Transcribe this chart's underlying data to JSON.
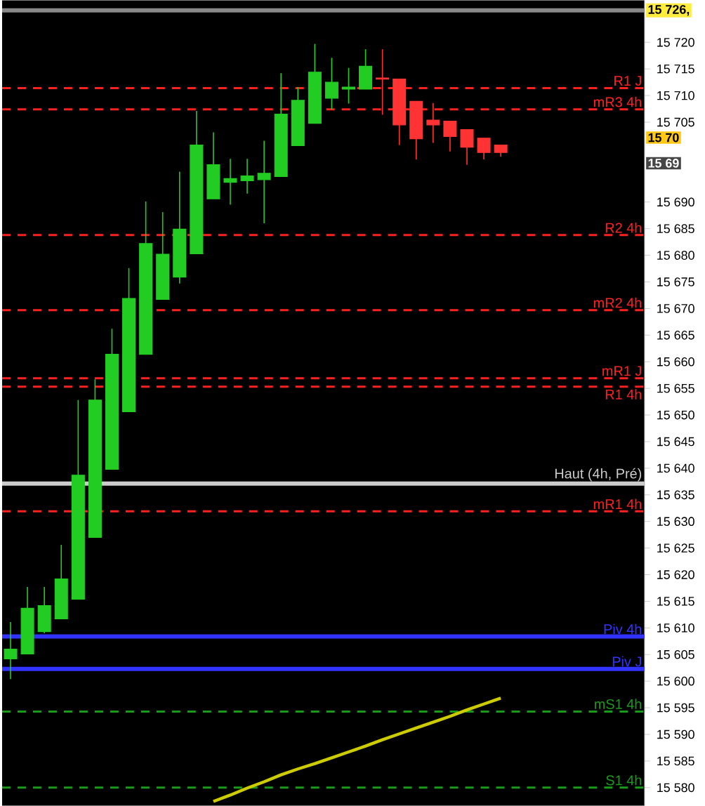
{
  "chart_data": {
    "type": "candlestick",
    "categories": [
      null,
      null,
      null,
      null,
      null,
      null,
      null,
      null,
      null,
      null,
      null,
      null,
      null,
      null,
      null,
      null,
      null,
      null,
      null,
      null,
      null,
      null,
      null,
      null,
      null,
      null,
      null,
      null,
      null,
      null,
      null,
      null,
      null,
      null,
      null,
      null,
      null,
      null
    ],
    "ohlc": [
      [
        15604.2,
        15611.1,
        15600.4,
        15606.0
      ],
      [
        15605.1,
        15617.7,
        15605.1,
        15613.7
      ],
      [
        15609.3,
        15617.7,
        15609.0,
        15614.2
      ],
      [
        15611.7,
        15625.6,
        15611.7,
        15619.2
      ],
      [
        15615.4,
        15652.8,
        15615.4,
        15638.7
      ],
      [
        15627.0,
        15656.7,
        15627.0,
        15652.8
      ],
      [
        15639.8,
        15666.2,
        15639.8,
        15661.4
      ],
      [
        15650.6,
        15677.6,
        15650.6,
        15671.9
      ],
      [
        15661.4,
        15690.1,
        15661.4,
        15682.2
      ],
      [
        15671.7,
        15688.1,
        15671.7,
        15680.2
      ],
      [
        15675.9,
        15695.7,
        15674.7,
        15684.9
      ],
      [
        15680.3,
        15707.1,
        15680.3,
        15700.7
      ],
      [
        15690.6,
        15703.1,
        15690.6,
        15697.0
      ],
      [
        15693.7,
        15698.1,
        15689.5,
        15694.4
      ],
      [
        15694.0,
        15698.1,
        15691.6,
        15694.9
      ],
      [
        15694.2,
        15701.5,
        15686.0,
        15695.4
      ],
      [
        15694.8,
        15714.2,
        15694.8,
        15706.5
      ],
      [
        15700.6,
        15711.6,
        15700.6,
        15709.1
      ],
      [
        15704.8,
        15719.7,
        15704.8,
        15714.4
      ],
      [
        15709.5,
        15717.1,
        15707.4,
        15712.5
      ],
      [
        15711.2,
        15715.2,
        15708.5,
        15711.6
      ],
      [
        15711.2,
        15718.7,
        15711.2,
        15715.5
      ],
      [
        15713.3,
        15718.7,
        15706.4,
        15713.1
      ],
      [
        15713.1,
        15713.1,
        15700.7,
        15704.5
      ],
      [
        15708.9,
        15708.9,
        15698.0,
        15701.9
      ],
      [
        15705.4,
        15708.6,
        15701.1,
        15704.5
      ],
      [
        15705.2,
        15705.2,
        15699.5,
        15702.3
      ],
      [
        15703.6,
        15703.6,
        15697.0,
        15700.3
      ],
      [
        15702.0,
        15702.0,
        15698.0,
        15699.3
      ],
      [
        15700.7,
        15700.7,
        15698.5,
        15699.3
      ],
      null,
      null,
      null,
      null,
      null,
      null,
      null,
      null
    ],
    "colors": [
      "#22cc22",
      "#22cc22",
      "#22cc22",
      "#22cc22",
      "#22cc22",
      "#22cc22",
      "#22cc22",
      "#22cc22",
      "#22cc22",
      "#22cc22",
      "#22cc22",
      "#22cc22",
      "#22cc22",
      "#22cc22",
      "#22cc22",
      "#22cc22",
      "#22cc22",
      "#22cc22",
      "#22cc22",
      "#22cc22",
      "#22cc22",
      "#22cc22",
      "#ff3333",
      "#ff3333",
      "#ff3333",
      "#ff3333",
      "#ff3333",
      "#ff3333",
      "#ff3333",
      "#ff3333",
      null,
      null,
      null,
      null,
      null,
      null,
      null,
      null
    ],
    "series": [
      {
        "type": "line",
        "color": "#cccc00",
        "values": [
          null,
          null,
          null,
          null,
          null,
          null,
          null,
          null,
          null,
          null,
          null,
          null,
          15577.4,
          15578.6,
          15579.9,
          15581.1,
          15582.4,
          15583.5,
          15584.5,
          15585.6,
          15586.7,
          15587.8,
          15589.0,
          15590.1,
          15591.2,
          15592.3,
          15593.4,
          15594.6,
          15595.7,
          15596.8,
          null,
          null,
          null,
          null,
          null,
          null,
          null,
          null
        ]
      }
    ],
    "ylim": [
      15576.6,
      15727.9
    ],
    "yticks": [
      {
        "value": 15580,
        "label": "15 580"
      },
      {
        "value": 15585,
        "label": "15 585"
      },
      {
        "value": 15590,
        "label": "15 590"
      },
      {
        "value": 15595,
        "label": "15 595"
      },
      {
        "value": 15600,
        "label": "15 600"
      },
      {
        "value": 15605,
        "label": "15 605"
      },
      {
        "value": 15610,
        "label": "15 610"
      },
      {
        "value": 15615,
        "label": "15 615"
      },
      {
        "value": 15620,
        "label": "15 620"
      },
      {
        "value": 15625,
        "label": "15 625"
      },
      {
        "value": 15630,
        "label": "15 630"
      },
      {
        "value": 15635,
        "label": "15 635"
      },
      {
        "value": 15640,
        "label": "15 640"
      },
      {
        "value": 15645,
        "label": "15 645"
      },
      {
        "value": 15650,
        "label": "15 650"
      },
      {
        "value": 15655,
        "label": "15 655"
      },
      {
        "value": 15660,
        "label": "15 660"
      },
      {
        "value": 15665,
        "label": "15 665"
      },
      {
        "value": 15670,
        "label": "15 670"
      },
      {
        "value": 15675,
        "label": "15 675"
      },
      {
        "value": 15680,
        "label": "15 680"
      },
      {
        "value": 15685,
        "label": "15 685"
      },
      {
        "value": 15690,
        "label": "15 690"
      },
      {
        "value": 15705,
        "label": "15 705"
      },
      {
        "value": 15710,
        "label": "15 710"
      },
      {
        "value": 15715,
        "label": "15 715"
      },
      {
        "value": 15720,
        "label": "15 720"
      }
    ],
    "ref_lines": [
      {
        "axis": "y",
        "value": 15726,
        "color": "#888888",
        "line_style": "solid"
      },
      {
        "axis": "y",
        "value": 15711.4,
        "label": "R1 J",
        "color": "#ff2020",
        "line_style": "dashed"
      },
      {
        "axis": "y",
        "value": 15707.4,
        "label": "mR3 4h",
        "color": "#ff2020",
        "line_style": "dashed"
      },
      {
        "axis": "y",
        "value": 15683.8,
        "label": "R2 4h",
        "color": "#ff2020",
        "line_style": "dashed"
      },
      {
        "axis": "y",
        "value": 15669.7,
        "label": "mR2 4h",
        "color": "#ff2020",
        "line_style": "dashed"
      },
      {
        "axis": "y",
        "value": 15656.9,
        "label": "mR1 J",
        "color": "#ff2020",
        "line_style": "dashed"
      },
      {
        "axis": "y",
        "value": 15655.3,
        "label": "R1 4h",
        "color": "#ff2020",
        "line_style": "dashed"
      },
      {
        "axis": "y",
        "value": 15637.1,
        "label": "Haut (4h, Pré)",
        "color": "#cccccc",
        "line_style": "solid"
      },
      {
        "axis": "y",
        "value": 15631.9,
        "label": "mR1 4h",
        "color": "#ff2020",
        "line_style": "dashed"
      },
      {
        "axis": "y",
        "value": 15608.4,
        "label": "Piv 4h",
        "color": "#3333ff",
        "line_style": "solid"
      },
      {
        "axis": "y",
        "value": 15602.3,
        "label": "Piv J",
        "color": "#3333ff",
        "line_style": "solid"
      },
      {
        "axis": "y",
        "value": 15594.3,
        "label": "mS1 4h",
        "color": "#1a9a1a",
        "line_style": "dashed"
      },
      {
        "axis": "y",
        "value": 15580,
        "label": "S1 4h",
        "color": "#1a9a1a",
        "line_style": "dashed"
      }
    ],
    "annotations": [
      {
        "text": "15 726,",
        "y": 15726
      },
      {
        "text": "15 70",
        "y": 15702.1
      },
      {
        "text": "15 69",
        "y": 15697.3
      }
    ]
  }
}
